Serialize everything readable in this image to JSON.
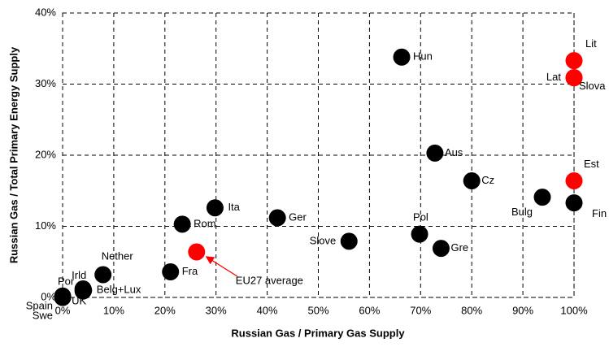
{
  "chart_data": {
    "type": "scatter",
    "x_label": "Russian Gas / Primary Gas Supply",
    "y_label": "Russian Gas / Total Primary Energy Supply",
    "xlim": [
      0,
      100
    ],
    "ylim": [
      0,
      40
    ],
    "xticks": [
      {
        "value": 0,
        "label": "0%"
      },
      {
        "value": 10,
        "label": "10%"
      },
      {
        "value": 20,
        "label": "20%"
      },
      {
        "value": 30,
        "label": "30%"
      },
      {
        "value": 40,
        "label": "40%"
      },
      {
        "value": 50,
        "label": "50%"
      },
      {
        "value": 60,
        "label": "60%"
      },
      {
        "value": 70,
        "label": "70%"
      },
      {
        "value": 80,
        "label": "80%"
      },
      {
        "value": 90,
        "label": "90%"
      },
      {
        "value": 100,
        "label": "100%"
      }
    ],
    "yticks": [
      {
        "value": 0,
        "label": "0%"
      },
      {
        "value": 10,
        "label": "10%"
      },
      {
        "value": 20,
        "label": "20%"
      },
      {
        "value": 30,
        "label": "30%"
      },
      {
        "value": 40,
        "label": "40%"
      }
    ],
    "grid": true,
    "points": [
      {
        "label": "Hun",
        "x": 66.3,
        "y": 33.8,
        "color": "#000000"
      },
      {
        "label": "Lit",
        "x": 100,
        "y": 33.3,
        "color": "#ff0000"
      },
      {
        "label": "Lat",
        "x": 100,
        "y": 30.9,
        "color": "#ff0000"
      },
      {
        "label": "Slova",
        "x": 100,
        "y": 30.9,
        "color": "#ff0000"
      },
      {
        "label": "Aus",
        "x": 72.8,
        "y": 20.3,
        "color": "#000000"
      },
      {
        "label": "Cz",
        "x": 80,
        "y": 16.4,
        "color": "#000000"
      },
      {
        "label": "Est",
        "x": 100,
        "y": 16.4,
        "color": "#ff0000"
      },
      {
        "label": "Bulg",
        "x": 93.8,
        "y": 14.1,
        "color": "#000000"
      },
      {
        "label": "Fin",
        "x": 100,
        "y": 13.3,
        "color": "#000000"
      },
      {
        "label": "Ita",
        "x": 29.8,
        "y": 12.6,
        "color": "#000000"
      },
      {
        "label": "Rom",
        "x": 23.4,
        "y": 10.3,
        "color": "#000000"
      },
      {
        "label": "Ger",
        "x": 42,
        "y": 11.2,
        "color": "#000000"
      },
      {
        "label": "Pol",
        "x": 69.8,
        "y": 8.9,
        "color": "#000000"
      },
      {
        "label": "Slove",
        "x": 56,
        "y": 7.9,
        "color": "#000000"
      },
      {
        "label": "Gre",
        "x": 74,
        "y": 6.9,
        "color": "#000000"
      },
      {
        "label": "Fra",
        "x": 21.1,
        "y": 3.6,
        "color": "#000000"
      },
      {
        "label": "Nether",
        "x": 7.9,
        "y": 3.2,
        "color": "#000000"
      },
      {
        "label": "Belg+Lux",
        "x": 4.1,
        "y": 1.0,
        "color": "#000000"
      },
      {
        "label": "Irld",
        "x": 4,
        "y": 1.2,
        "color": "#000000"
      },
      {
        "label": "UK",
        "x": 4,
        "y": 0.9,
        "color": "#000000"
      },
      {
        "label": "Por",
        "x": 0,
        "y": 0.2,
        "color": "#000000"
      },
      {
        "label": "Spain",
        "x": 0,
        "y": 0,
        "color": "#000000"
      },
      {
        "label": "Swe",
        "x": 0,
        "y": 0,
        "color": "#000000"
      },
      {
        "label": "EU27 average",
        "x": 26.2,
        "y": 6.4,
        "color": "#ff0000"
      }
    ]
  }
}
